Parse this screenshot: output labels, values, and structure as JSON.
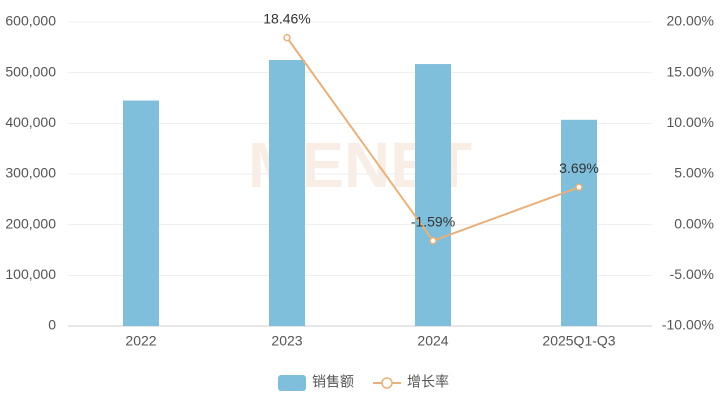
{
  "chart_data": {
    "type": "bar-line",
    "watermark": "MENET",
    "categories": [
      "2022",
      "2023",
      "2024",
      "2025Q1-Q3"
    ],
    "series": [
      {
        "name": "销售额",
        "type": "bar",
        "color": "#7fbfdc",
        "values": [
          445000,
          525000,
          517000,
          407000
        ]
      },
      {
        "name": "增长率",
        "type": "line",
        "axis": "y2",
        "color": "#e8b07a",
        "values": [
          null,
          18.46,
          -1.59,
          3.69
        ],
        "value_labels": [
          null,
          "18.46%",
          "-1.59%",
          "3.69%"
        ]
      }
    ],
    "ylim": [
      0,
      600000
    ],
    "yticks": [
      0,
      {
        "value": 100000,
        "label": "100,000"
      },
      {
        "value": 200000,
        "label": "200,000"
      },
      {
        "value": 300000,
        "label": "300,000"
      },
      {
        "value": 400000,
        "label": "400,000"
      },
      {
        "value": 500000,
        "label": "500,000"
      },
      {
        "value": 600000,
        "label": "600,000"
      }
    ],
    "y2lim": [
      -10,
      20
    ],
    "y2ticks": [
      {
        "value": -10,
        "label": "-10.00%"
      },
      {
        "value": -5,
        "label": "-5.00%"
      },
      {
        "value": 0,
        "label": "0.00%"
      },
      {
        "value": 5,
        "label": "5.00%"
      },
      {
        "value": 10,
        "label": "10.00%"
      },
      {
        "value": 15,
        "label": "15.00%"
      },
      {
        "value": 20,
        "label": "20.00%"
      }
    ],
    "grid": true
  }
}
